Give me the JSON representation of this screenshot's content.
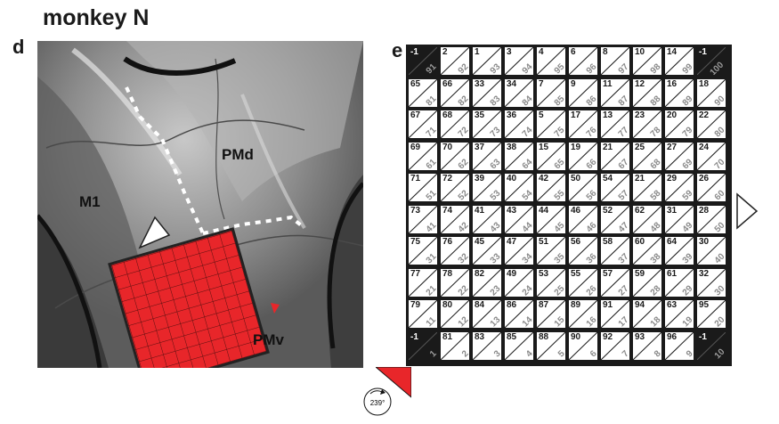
{
  "title": "monkey N",
  "panel_d": {
    "letter": "d",
    "labels": {
      "pmd": "PMd",
      "m1": "M1",
      "pmv": "PMv"
    }
  },
  "panel_e": {
    "letter": "e",
    "rotation": "239°",
    "colors": {
      "grid_bg": "#1a1a1a",
      "array_red": "#e8262a",
      "label_gray": "#8a8a8a"
    },
    "rows": [
      [
        [
          "-1",
          "91"
        ],
        [
          "2",
          "92"
        ],
        [
          "1",
          "93"
        ],
        [
          "3",
          "94"
        ],
        [
          "4",
          "95"
        ],
        [
          "6",
          "96"
        ],
        [
          "8",
          "97"
        ],
        [
          "10",
          "98"
        ],
        [
          "14",
          "99"
        ],
        [
          "-1",
          "100"
        ]
      ],
      [
        [
          "65",
          "81"
        ],
        [
          "66",
          "82"
        ],
        [
          "33",
          "83"
        ],
        [
          "34",
          "84"
        ],
        [
          "7",
          "85"
        ],
        [
          "9",
          "86"
        ],
        [
          "11",
          "87"
        ],
        [
          "12",
          "88"
        ],
        [
          "16",
          "89"
        ],
        [
          "18",
          "90"
        ]
      ],
      [
        [
          "67",
          "71"
        ],
        [
          "68",
          "72"
        ],
        [
          "35",
          "73"
        ],
        [
          "36",
          "74"
        ],
        [
          "5",
          "75"
        ],
        [
          "17",
          "76"
        ],
        [
          "13",
          "77"
        ],
        [
          "23",
          "78"
        ],
        [
          "20",
          "79"
        ],
        [
          "22",
          "80"
        ]
      ],
      [
        [
          "69",
          "61"
        ],
        [
          "70",
          "62"
        ],
        [
          "37",
          "63"
        ],
        [
          "38",
          "64"
        ],
        [
          "15",
          "65"
        ],
        [
          "19",
          "66"
        ],
        [
          "21",
          "67"
        ],
        [
          "25",
          "68"
        ],
        [
          "27",
          "69"
        ],
        [
          "24",
          "70"
        ]
      ],
      [
        [
          "71",
          "51"
        ],
        [
          "72",
          "52"
        ],
        [
          "39",
          "53"
        ],
        [
          "40",
          "54"
        ],
        [
          "42",
          "55"
        ],
        [
          "50",
          "56"
        ],
        [
          "54",
          "57"
        ],
        [
          "21",
          "58"
        ],
        [
          "29",
          "59"
        ],
        [
          "26",
          "60"
        ]
      ],
      [
        [
          "73",
          "41"
        ],
        [
          "74",
          "42"
        ],
        [
          "41",
          "43"
        ],
        [
          "43",
          "44"
        ],
        [
          "44",
          "45"
        ],
        [
          "46",
          "46"
        ],
        [
          "52",
          "47"
        ],
        [
          "62",
          "48"
        ],
        [
          "31",
          "49"
        ],
        [
          "28",
          "50"
        ]
      ],
      [
        [
          "75",
          "31"
        ],
        [
          "76",
          "32"
        ],
        [
          "45",
          "33"
        ],
        [
          "47",
          "34"
        ],
        [
          "51",
          "35"
        ],
        [
          "56",
          "36"
        ],
        [
          "58",
          "37"
        ],
        [
          "60",
          "38"
        ],
        [
          "64",
          "39"
        ],
        [
          "30",
          "40"
        ]
      ],
      [
        [
          "77",
          "21"
        ],
        [
          "78",
          "22"
        ],
        [
          "82",
          "23"
        ],
        [
          "49",
          "24"
        ],
        [
          "53",
          "25"
        ],
        [
          "55",
          "26"
        ],
        [
          "57",
          "27"
        ],
        [
          "59",
          "28"
        ],
        [
          "61",
          "29"
        ],
        [
          "32",
          "30"
        ]
      ],
      [
        [
          "79",
          "11"
        ],
        [
          "80",
          "12"
        ],
        [
          "84",
          "13"
        ],
        [
          "86",
          "14"
        ],
        [
          "87",
          "15"
        ],
        [
          "89",
          "16"
        ],
        [
          "91",
          "17"
        ],
        [
          "94",
          "18"
        ],
        [
          "63",
          "19"
        ],
        [
          "95",
          "20"
        ]
      ],
      [
        [
          "-1",
          "1"
        ],
        [
          "81",
          "2"
        ],
        [
          "83",
          "3"
        ],
        [
          "85",
          "4"
        ],
        [
          "88",
          "5"
        ],
        [
          "90",
          "6"
        ],
        [
          "92",
          "7"
        ],
        [
          "93",
          "8"
        ],
        [
          "96",
          "9"
        ],
        [
          "-1",
          "10"
        ]
      ]
    ]
  }
}
